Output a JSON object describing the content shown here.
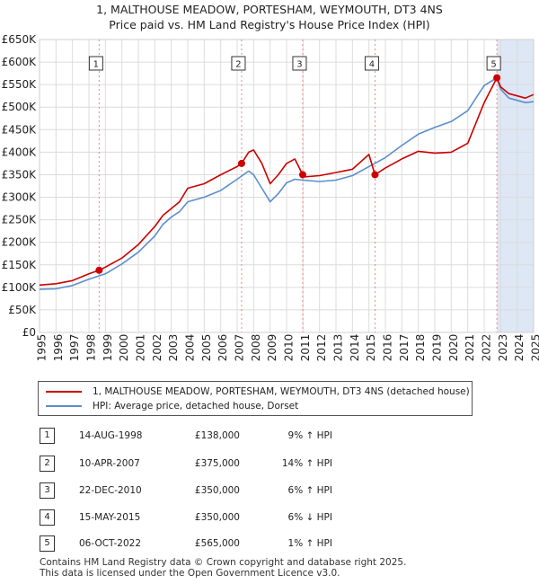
{
  "title": {
    "line1": "1, MALTHOUSE MEADOW, PORTESHAM, WEYMOUTH, DT3 4NS",
    "line2": "Price paid vs. HM Land Registry's House Price Index (HPI)"
  },
  "colors": {
    "property": "#cc0000",
    "hpi": "#5b8fcc",
    "highlight": "#dde7f5",
    "marker_line": "#e88888"
  },
  "legend": {
    "property_label": "1, MALTHOUSE MEADOW, PORTESHAM, WEYMOUTH, DT3 4NS (detached house)",
    "hpi_label": "HPI: Average price, detached house, Dorset"
  },
  "sales": [
    {
      "num": "1",
      "date": "14-AUG-1998",
      "price": "£138,000",
      "hpi": "9% ↑ HPI"
    },
    {
      "num": "2",
      "date": "10-APR-2007",
      "price": "£375,000",
      "hpi": "14% ↑ HPI"
    },
    {
      "num": "3",
      "date": "22-DEC-2010",
      "price": "£350,000",
      "hpi": "6% ↑ HPI"
    },
    {
      "num": "4",
      "date": "15-MAY-2015",
      "price": "£350,000",
      "hpi": "6% ↓ HPI"
    },
    {
      "num": "5",
      "date": "06-OCT-2022",
      "price": "£565,000",
      "hpi": "1% ↑ HPI"
    }
  ],
  "footer": {
    "line1": "Contains HM Land Registry data © Crown copyright and database right 2025.",
    "line2": "This data is licensed under the Open Government Licence v3.0."
  },
  "chart_data": {
    "type": "line",
    "title": "Price paid vs. HM Land Registry's House Price Index (HPI)",
    "xlabel": "",
    "ylabel": "",
    "xlim": [
      1995,
      2025
    ],
    "ylim": [
      0,
      650000
    ],
    "y_ticks": [
      {
        "value": 0,
        "label": "£0"
      },
      {
        "value": 50000,
        "label": "£50K"
      },
      {
        "value": 100000,
        "label": "£100K"
      },
      {
        "value": 150000,
        "label": "£150K"
      },
      {
        "value": 200000,
        "label": "£200K"
      },
      {
        "value": 250000,
        "label": "£250K"
      },
      {
        "value": 300000,
        "label": "£300K"
      },
      {
        "value": 350000,
        "label": "£350K"
      },
      {
        "value": 400000,
        "label": "£400K"
      },
      {
        "value": 450000,
        "label": "£450K"
      },
      {
        "value": 500000,
        "label": "£500K"
      },
      {
        "value": 550000,
        "label": "£550K"
      },
      {
        "value": 600000,
        "label": "£600K"
      },
      {
        "value": 650000,
        "label": "£650K"
      }
    ],
    "x_ticks": [
      "1995",
      "1996",
      "1997",
      "1998",
      "1999",
      "2000",
      "2001",
      "2002",
      "2003",
      "2004",
      "2005",
      "2006",
      "2007",
      "2008",
      "2009",
      "2010",
      "2011",
      "2012",
      "2013",
      "2014",
      "2015",
      "2016",
      "2017",
      "2018",
      "2019",
      "2020",
      "2021",
      "2022",
      "2023",
      "2024",
      "2025"
    ],
    "highlight_range": [
      2022.77,
      2025
    ],
    "markers": [
      {
        "label": "1",
        "x": 1998.62,
        "y": 138000
      },
      {
        "label": "2",
        "x": 2007.27,
        "y": 375000
      },
      {
        "label": "3",
        "x": 2010.98,
        "y": 350000
      },
      {
        "label": "4",
        "x": 2015.37,
        "y": 350000
      },
      {
        "label": "5",
        "x": 2022.77,
        "y": 565000
      }
    ],
    "series": [
      {
        "name": "1, MALTHOUSE MEADOW, PORTESHAM, WEYMOUTH, DT3 4NS (detached house)",
        "x": [
          1995,
          1996,
          1997,
          1998,
          1998.62,
          1999,
          2000,
          2001,
          2002,
          2002.5,
          2003,
          2003.5,
          2004,
          2005,
          2006,
          2007,
          2007.27,
          2007.7,
          2008,
          2008.5,
          2009,
          2009.5,
          2010,
          2010.5,
          2010.98,
          2011,
          2012,
          2013,
          2014,
          2015,
          2015.37,
          2016,
          2017,
          2018,
          2019,
          2020,
          2021,
          2022,
          2022.77,
          2023,
          2023.5,
          2024,
          2024.5,
          2025
        ],
        "values": [
          105000,
          108000,
          115000,
          130000,
          138000,
          145000,
          165000,
          195000,
          235000,
          260000,
          275000,
          290000,
          320000,
          330000,
          350000,
          368000,
          375000,
          400000,
          405000,
          375000,
          330000,
          350000,
          375000,
          385000,
          350000,
          345000,
          348000,
          355000,
          362000,
          395000,
          350000,
          365000,
          385000,
          402000,
          398000,
          400000,
          420000,
          510000,
          565000,
          545000,
          530000,
          525000,
          520000,
          528000
        ]
      },
      {
        "name": "HPI: Average price, detached house, Dorset",
        "x": [
          1995,
          1996,
          1997,
          1998,
          1999,
          2000,
          2001,
          2002,
          2002.5,
          2003,
          2003.5,
          2004,
          2005,
          2006,
          2007,
          2007.7,
          2008,
          2008.5,
          2009,
          2009.5,
          2010,
          2010.5,
          2011,
          2012,
          2013,
          2014,
          2015,
          2016,
          2017,
          2018,
          2019,
          2020,
          2021,
          2022,
          2022.77,
          2023,
          2023.5,
          2024,
          2024.5,
          2025
        ],
        "values": [
          96000,
          97000,
          104000,
          118000,
          130000,
          152000,
          178000,
          214000,
          240000,
          256000,
          268000,
          290000,
          300000,
          315000,
          340000,
          358000,
          350000,
          320000,
          290000,
          308000,
          332000,
          340000,
          338000,
          335000,
          338000,
          348000,
          368000,
          388000,
          415000,
          440000,
          455000,
          468000,
          492000,
          548000,
          565000,
          540000,
          520000,
          515000,
          510000,
          512000
        ]
      }
    ]
  }
}
